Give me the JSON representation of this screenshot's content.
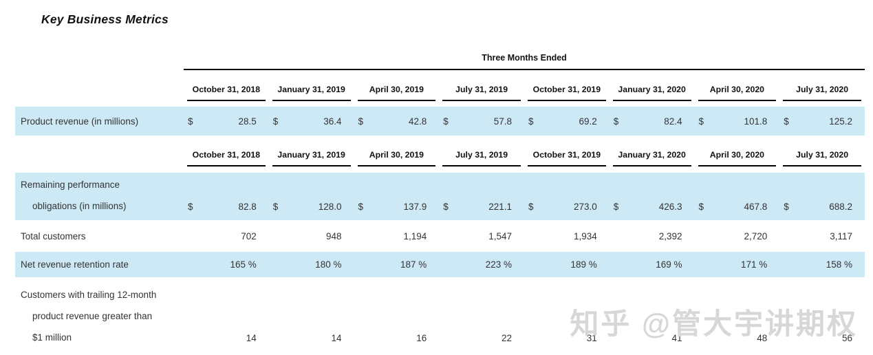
{
  "page": {
    "title": "Key Business Metrics"
  },
  "table": {
    "group_header": "Three Months Ended",
    "date_columns": [
      "October 31, 2018",
      "January 31, 2019",
      "April 30, 2019",
      "July 31, 2019",
      "October 31, 2019",
      "January 31, 2020",
      "April 30, 2020",
      "July 31, 2020"
    ],
    "rows": [
      {
        "id": "product-revenue",
        "label_lines": [
          "Product revenue (in millions)"
        ],
        "currency": "$",
        "values": [
          "28.5",
          "36.4",
          "42.8",
          "57.8",
          "69.2",
          "82.4",
          "101.8",
          "125.2"
        ],
        "highlight": true
      },
      {
        "id": "remaining-performance-obligations",
        "label_lines": [
          "Remaining performance",
          "obligations (in millions)"
        ],
        "currency": "$",
        "values": [
          "82.8",
          "128.0",
          "137.9",
          "221.1",
          "273.0",
          "426.3",
          "467.8",
          "688.2"
        ],
        "highlight": true
      },
      {
        "id": "total-customers",
        "label_lines": [
          "Total customers"
        ],
        "currency": "",
        "values": [
          "702",
          "948",
          "1,194",
          "1,547",
          "1,934",
          "2,392",
          "2,720",
          "3,117"
        ],
        "highlight": false
      },
      {
        "id": "net-revenue-retention-rate",
        "label_lines": [
          "Net revenue retention rate"
        ],
        "currency": "",
        "values": [
          "165 %",
          "180 %",
          "187 %",
          "223 %",
          "189 %",
          "169 %",
          "171 %",
          "158 %"
        ],
        "highlight": true
      },
      {
        "id": "customers-over-1m",
        "label_lines": [
          "Customers with trailing 12-month",
          "product revenue greater than",
          "$1 million"
        ],
        "currency": "",
        "values": [
          "14",
          "14",
          "16",
          "22",
          "31",
          "41",
          "48",
          "56"
        ],
        "highlight": false
      }
    ]
  },
  "watermark": {
    "text": "知乎 @管大宇讲期权"
  },
  "colors": {
    "row_highlight": "#cde9f6",
    "rule": "#000000",
    "watermark": "#d7d7d7"
  }
}
